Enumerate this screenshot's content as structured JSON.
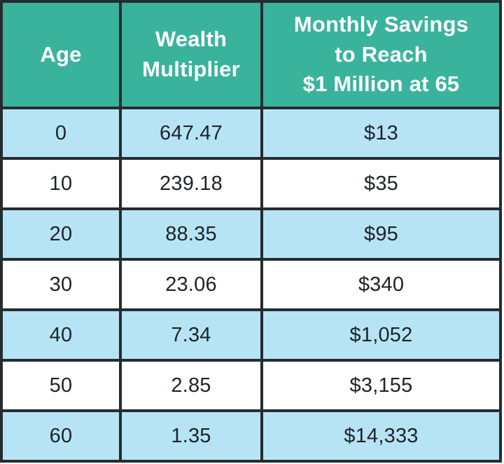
{
  "colors": {
    "header_bg": "#3ab39d",
    "header_text": "#ffffff",
    "row_alt_bg": "#b7e4f5",
    "row_bg": "#ffffff",
    "border": "#252b2f",
    "cell_text": "#1d2327",
    "page_bg": "#ffffff"
  },
  "table": {
    "columns": [
      {
        "label": "Age"
      },
      {
        "label": "Wealth\nMultiplier"
      },
      {
        "label": "Monthly Savings\nto Reach\n$1 Million at 65"
      }
    ],
    "rows": [
      {
        "age": "0",
        "multiplier": "647.47",
        "savings": "$13"
      },
      {
        "age": "10",
        "multiplier": "239.18",
        "savings": "$35"
      },
      {
        "age": "20",
        "multiplier": "88.35",
        "savings": "$95"
      },
      {
        "age": "30",
        "multiplier": "23.06",
        "savings": "$340"
      },
      {
        "age": "40",
        "multiplier": "7.34",
        "savings": "$1,052"
      },
      {
        "age": "50",
        "multiplier": "2.85",
        "savings": "$3,155"
      },
      {
        "age": "60",
        "multiplier": "1.35",
        "savings": "$14,333"
      }
    ]
  },
  "chart_data": {
    "type": "table",
    "title": "",
    "columns": [
      "Age",
      "Wealth Multiplier",
      "Monthly Savings to Reach $1 Million at 65"
    ],
    "rows": [
      [
        0,
        647.47,
        "$13"
      ],
      [
        10,
        239.18,
        "$35"
      ],
      [
        20,
        88.35,
        "$95"
      ],
      [
        30,
        23.06,
        "$340"
      ],
      [
        40,
        7.34,
        "$1,052"
      ],
      [
        50,
        2.85,
        "$3,155"
      ],
      [
        60,
        1.35,
        "$14,333"
      ]
    ],
    "layout_hints": {
      "header_background": "#3ab39d",
      "zebra_striping": "even rows light blue starting with first data row",
      "grid": "on"
    }
  }
}
